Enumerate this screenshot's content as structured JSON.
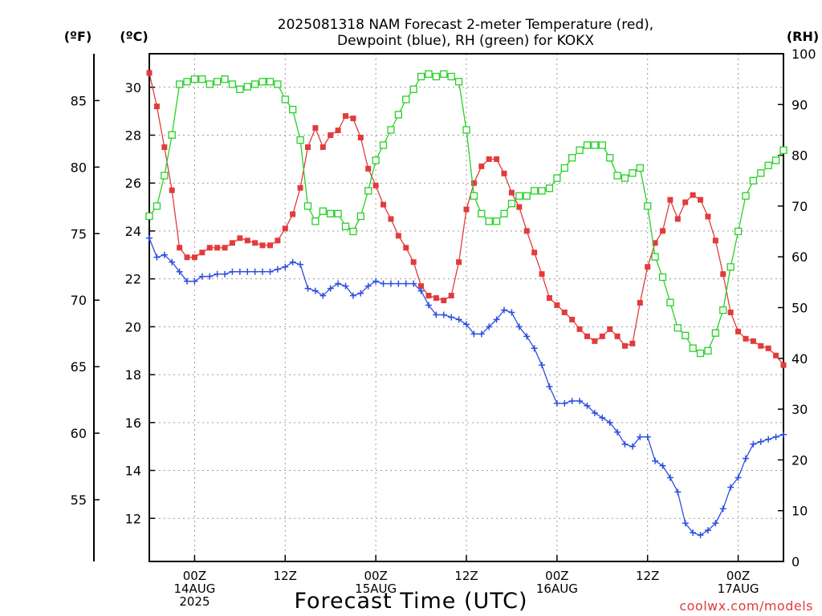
{
  "chart_data": {
    "type": "line",
    "title_lines": [
      "2025081318 NAM Forecast 2-meter Temperature (red),",
      "Dewpoint (blue), RH (green) for KOKX"
    ],
    "units": {
      "fahrenheit": "(ºF)",
      "celsius": "(ºC)",
      "rh": "(RH)"
    },
    "xlabel": "Forecast Time (UTC)",
    "credit": "coolwx.com/models",
    "x_unit": "forecast hour since 2025-08-13 18Z",
    "x_range": [
      0,
      84
    ],
    "x_ticks": [
      {
        "hour": 6,
        "lines": [
          "00Z",
          "14AUG",
          "2025"
        ]
      },
      {
        "hour": 18,
        "lines": [
          "12Z"
        ]
      },
      {
        "hour": 30,
        "lines": [
          "00Z",
          "15AUG"
        ]
      },
      {
        "hour": 42,
        "lines": [
          "12Z"
        ]
      },
      {
        "hour": 54,
        "lines": [
          "00Z",
          "16AUG"
        ]
      },
      {
        "hour": 66,
        "lines": [
          "12Z"
        ]
      },
      {
        "hour": 78,
        "lines": [
          "00Z",
          "17AUG"
        ]
      }
    ],
    "celsius_axis": {
      "range": [
        10.2,
        31.4
      ],
      "ticks": [
        12,
        14,
        16,
        18,
        20,
        22,
        24,
        26,
        28,
        30
      ]
    },
    "fahrenheit_ticks": [
      55,
      60,
      65,
      70,
      75,
      80,
      85
    ],
    "rh_axis": {
      "range": [
        0,
        100
      ],
      "ticks": [
        0,
        10,
        20,
        30,
        40,
        50,
        60,
        70,
        80,
        90,
        100
      ]
    },
    "grid": true,
    "series": [
      {
        "name": "Temperature",
        "color": "#e23b3b",
        "marker": "filled-square",
        "axis": "celsius",
        "points": [
          [
            0,
            30.6
          ],
          [
            1,
            29.2
          ],
          [
            2,
            27.5
          ],
          [
            3,
            25.7
          ],
          [
            4,
            23.3
          ],
          [
            5,
            22.9
          ],
          [
            6,
            22.9
          ],
          [
            7,
            23.1
          ],
          [
            8,
            23.3
          ],
          [
            9,
            23.3
          ],
          [
            10,
            23.3
          ],
          [
            11,
            23.5
          ],
          [
            12,
            23.7
          ],
          [
            13,
            23.6
          ],
          [
            14,
            23.5
          ],
          [
            15,
            23.4
          ],
          [
            16,
            23.4
          ],
          [
            17,
            23.6
          ],
          [
            18,
            24.1
          ],
          [
            19,
            24.7
          ],
          [
            20,
            25.8
          ],
          [
            21,
            27.5
          ],
          [
            22,
            28.3
          ],
          [
            23,
            27.5
          ],
          [
            24,
            28.0
          ],
          [
            25,
            28.2
          ],
          [
            26,
            28.8
          ],
          [
            27,
            28.7
          ],
          [
            28,
            27.9
          ],
          [
            29,
            26.6
          ],
          [
            30,
            25.9
          ],
          [
            31,
            25.1
          ],
          [
            32,
            24.5
          ],
          [
            33,
            23.8
          ],
          [
            34,
            23.3
          ],
          [
            35,
            22.7
          ],
          [
            36,
            21.7
          ],
          [
            37,
            21.3
          ],
          [
            38,
            21.2
          ],
          [
            39,
            21.1
          ],
          [
            40,
            21.3
          ],
          [
            41,
            22.7
          ],
          [
            42,
            24.9
          ],
          [
            43,
            26.0
          ],
          [
            44,
            26.7
          ],
          [
            45,
            27.0
          ],
          [
            46,
            27.0
          ],
          [
            47,
            26.4
          ],
          [
            48,
            25.6
          ],
          [
            49,
            25.0
          ],
          [
            50,
            24.0
          ],
          [
            51,
            23.1
          ],
          [
            52,
            22.2
          ],
          [
            53,
            21.2
          ],
          [
            54,
            20.9
          ],
          [
            55,
            20.6
          ],
          [
            56,
            20.3
          ],
          [
            57,
            19.9
          ],
          [
            58,
            19.6
          ],
          [
            59,
            19.4
          ],
          [
            60,
            19.6
          ],
          [
            61,
            19.9
          ],
          [
            62,
            19.6
          ],
          [
            63,
            19.2
          ],
          [
            64,
            19.3
          ],
          [
            65,
            21.0
          ],
          [
            66,
            22.5
          ],
          [
            67,
            23.5
          ],
          [
            68,
            24.0
          ],
          [
            69,
            25.3
          ],
          [
            70,
            24.5
          ],
          [
            71,
            25.2
          ],
          [
            72,
            25.5
          ],
          [
            73,
            25.3
          ],
          [
            74,
            24.6
          ],
          [
            75,
            23.6
          ],
          [
            76,
            22.2
          ],
          [
            77,
            20.6
          ],
          [
            78,
            19.8
          ],
          [
            79,
            19.5
          ],
          [
            80,
            19.4
          ],
          [
            81,
            19.2
          ],
          [
            82,
            19.1
          ],
          [
            83,
            18.8
          ],
          [
            84,
            18.4
          ]
        ]
      },
      {
        "name": "Dewpoint",
        "color": "#2d4fe0",
        "marker": "plus",
        "axis": "celsius",
        "points": [
          [
            0,
            23.7
          ],
          [
            1,
            22.9
          ],
          [
            2,
            23.0
          ],
          [
            3,
            22.7
          ],
          [
            4,
            22.3
          ],
          [
            5,
            21.9
          ],
          [
            6,
            21.9
          ],
          [
            7,
            22.1
          ],
          [
            8,
            22.1
          ],
          [
            9,
            22.2
          ],
          [
            10,
            22.2
          ],
          [
            11,
            22.3
          ],
          [
            12,
            22.3
          ],
          [
            13,
            22.3
          ],
          [
            14,
            22.3
          ],
          [
            15,
            22.3
          ],
          [
            16,
            22.3
          ],
          [
            17,
            22.4
          ],
          [
            18,
            22.5
          ],
          [
            19,
            22.7
          ],
          [
            20,
            22.6
          ],
          [
            21,
            21.6
          ],
          [
            22,
            21.5
          ],
          [
            23,
            21.3
          ],
          [
            24,
            21.6
          ],
          [
            25,
            21.8
          ],
          [
            26,
            21.7
          ],
          [
            27,
            21.3
          ],
          [
            28,
            21.4
          ],
          [
            29,
            21.7
          ],
          [
            30,
            21.9
          ],
          [
            31,
            21.8
          ],
          [
            32,
            21.8
          ],
          [
            33,
            21.8
          ],
          [
            34,
            21.8
          ],
          [
            35,
            21.8
          ],
          [
            36,
            21.5
          ],
          [
            37,
            20.9
          ],
          [
            38,
            20.5
          ],
          [
            39,
            20.5
          ],
          [
            40,
            20.4
          ],
          [
            41,
            20.3
          ],
          [
            42,
            20.1
          ],
          [
            43,
            19.7
          ],
          [
            44,
            19.7
          ],
          [
            45,
            20.0
          ],
          [
            46,
            20.3
          ],
          [
            47,
            20.7
          ],
          [
            48,
            20.6
          ],
          [
            49,
            20.0
          ],
          [
            50,
            19.6
          ],
          [
            51,
            19.1
          ],
          [
            52,
            18.4
          ],
          [
            53,
            17.5
          ],
          [
            54,
            16.8
          ],
          [
            55,
            16.8
          ],
          [
            56,
            16.9
          ],
          [
            57,
            16.9
          ],
          [
            58,
            16.7
          ],
          [
            59,
            16.4
          ],
          [
            60,
            16.2
          ],
          [
            61,
            16.0
          ],
          [
            62,
            15.6
          ],
          [
            63,
            15.1
          ],
          [
            64,
            15.0
          ],
          [
            65,
            15.4
          ],
          [
            66,
            15.4
          ],
          [
            67,
            14.4
          ],
          [
            68,
            14.2
          ],
          [
            69,
            13.7
          ],
          [
            70,
            13.1
          ],
          [
            71,
            11.8
          ],
          [
            72,
            11.4
          ],
          [
            73,
            11.3
          ],
          [
            74,
            11.5
          ],
          [
            75,
            11.8
          ],
          [
            76,
            12.4
          ],
          [
            77,
            13.3
          ],
          [
            78,
            13.7
          ],
          [
            79,
            14.5
          ],
          [
            80,
            15.1
          ],
          [
            81,
            15.2
          ],
          [
            82,
            15.3
          ],
          [
            83,
            15.4
          ],
          [
            84,
            15.5
          ]
        ]
      },
      {
        "name": "RH",
        "color": "#27d027",
        "marker": "open-square",
        "axis": "rh",
        "points": [
          [
            0,
            68
          ],
          [
            1,
            70
          ],
          [
            2,
            76
          ],
          [
            3,
            84
          ],
          [
            4,
            94
          ],
          [
            5,
            94.5
          ],
          [
            6,
            95
          ],
          [
            7,
            95
          ],
          [
            8,
            94
          ],
          [
            9,
            94.5
          ],
          [
            10,
            95
          ],
          [
            11,
            94
          ],
          [
            12,
            93
          ],
          [
            13,
            93.5
          ],
          [
            14,
            94
          ],
          [
            15,
            94.5
          ],
          [
            16,
            94.5
          ],
          [
            17,
            94
          ],
          [
            18,
            91
          ],
          [
            19,
            89
          ],
          [
            20,
            83
          ],
          [
            21,
            70
          ],
          [
            22,
            67
          ],
          [
            23,
            69
          ],
          [
            24,
            68.5
          ],
          [
            25,
            68.5
          ],
          [
            26,
            66
          ],
          [
            27,
            65
          ],
          [
            28,
            68
          ],
          [
            29,
            73
          ],
          [
            30,
            79
          ],
          [
            31,
            82
          ],
          [
            32,
            85
          ],
          [
            33,
            88
          ],
          [
            34,
            91
          ],
          [
            35,
            93
          ],
          [
            36,
            95.5
          ],
          [
            37,
            96
          ],
          [
            38,
            95.5
          ],
          [
            39,
            96
          ],
          [
            40,
            95.5
          ],
          [
            41,
            94.5
          ],
          [
            42,
            85
          ],
          [
            43,
            72
          ],
          [
            44,
            68.5
          ],
          [
            45,
            67
          ],
          [
            46,
            67
          ],
          [
            47,
            68.5
          ],
          [
            48,
            70.5
          ],
          [
            49,
            72
          ],
          [
            50,
            72
          ],
          [
            51,
            73
          ],
          [
            52,
            73
          ],
          [
            53,
            73.5
          ],
          [
            54,
            75.5
          ],
          [
            55,
            77.5
          ],
          [
            56,
            79.5
          ],
          [
            57,
            81
          ],
          [
            58,
            82
          ],
          [
            59,
            82
          ],
          [
            60,
            82
          ],
          [
            61,
            79.5
          ],
          [
            62,
            76
          ],
          [
            63,
            75.5
          ],
          [
            64,
            76.5
          ],
          [
            65,
            77.5
          ],
          [
            66,
            70
          ],
          [
            67,
            60
          ],
          [
            68,
            56
          ],
          [
            69,
            51
          ],
          [
            70,
            46
          ],
          [
            71,
            44.5
          ],
          [
            72,
            42
          ],
          [
            73,
            41
          ],
          [
            74,
            41.5
          ],
          [
            75,
            45
          ],
          [
            76,
            49.5
          ],
          [
            77,
            58
          ],
          [
            78,
            65
          ],
          [
            79,
            72
          ],
          [
            80,
            75
          ],
          [
            81,
            76.5
          ],
          [
            82,
            78
          ],
          [
            83,
            79
          ],
          [
            84,
            81
          ]
        ]
      }
    ]
  }
}
